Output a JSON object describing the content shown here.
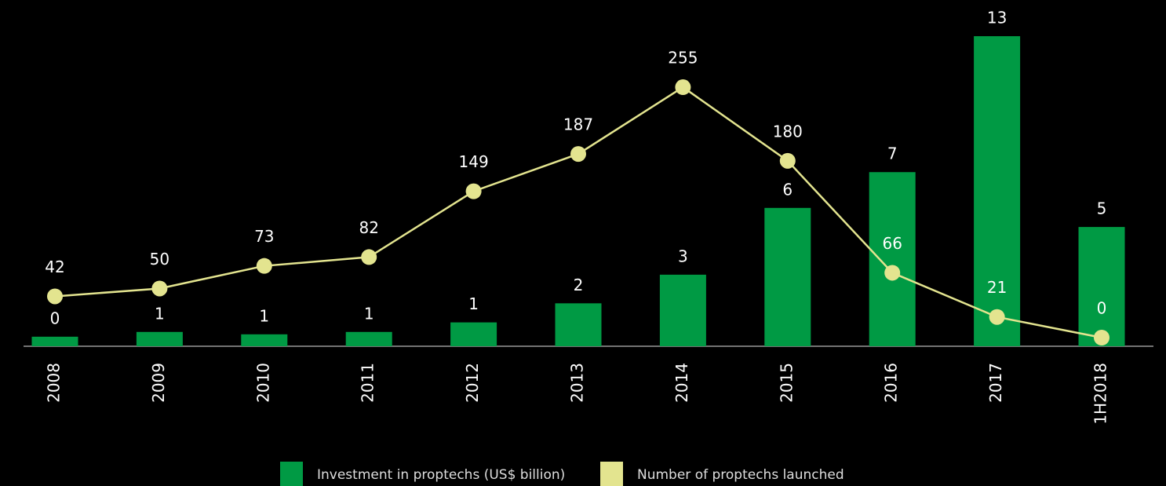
{
  "chart_data": {
    "type": "bar_line",
    "categories": [
      "2008",
      "2009",
      "2010",
      "2011",
      "2012",
      "2013",
      "2014",
      "2015",
      "2016",
      "2017",
      "1H2018"
    ],
    "series": [
      {
        "name": "Investment in proptechs (US$ billion)",
        "type": "bar",
        "color": "#009a44",
        "values": [
          0.4,
          0.6,
          0.5,
          0.6,
          1.0,
          1.8,
          3.0,
          5.8,
          7.3,
          13.0,
          5.0
        ],
        "value_labels": [
          "0",
          "1",
          "1",
          "1",
          "1",
          "2",
          "3",
          "6",
          "7",
          "13",
          "5"
        ]
      },
      {
        "name": "Number of proptechs launched",
        "type": "line",
        "axis": "y2",
        "color": "#e3e48f",
        "values": [
          42,
          50,
          73,
          82,
          149,
          187,
          255,
          180,
          66,
          21,
          0
        ]
      }
    ],
    "ylim": [
      0,
      13.2
    ],
    "y2lim": [
      -8.8,
      311.8
    ],
    "legend": "bottom"
  }
}
